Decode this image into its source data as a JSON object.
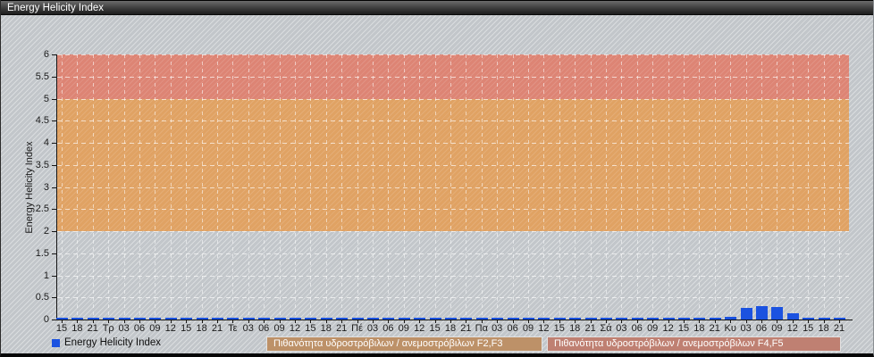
{
  "window": {
    "title": "Energy Helicity Index"
  },
  "colors": {
    "band_f23": "#e0a263",
    "band_f45": "#dd8474",
    "bar_blue": "#1b52e0",
    "legend_box_f23": "#bd9168",
    "legend_box_f45": "#bf8072",
    "background_gray": "#c2c6ca",
    "axis": "#151515"
  },
  "chart_data": {
    "type": "bar",
    "title": "Energy Helicity Index",
    "ylabel": "Energy Helicity Index",
    "xlabel": "",
    "ylim": [
      0,
      6
    ],
    "ytick_step": 0.5,
    "grid": "dashed-white",
    "legend_position": "bottom",
    "categories": [
      "15",
      "18",
      "21",
      "Τρ",
      "03",
      "06",
      "09",
      "12",
      "15",
      "18",
      "21",
      "Τε",
      "03",
      "06",
      "09",
      "12",
      "15",
      "18",
      "21",
      "Πέ",
      "03",
      "06",
      "09",
      "12",
      "15",
      "18",
      "21",
      "Πα",
      "03",
      "06",
      "09",
      "12",
      "15",
      "18",
      "21",
      "Σά",
      "03",
      "06",
      "09",
      "12",
      "15",
      "18",
      "21",
      "Κυ",
      "03",
      "06",
      "09",
      "12",
      "15",
      "18",
      "21"
    ],
    "series": [
      {
        "name": "Energy Helicity Index",
        "values": [
          0,
          0,
          0,
          0,
          0,
          0,
          0,
          0,
          0,
          0,
          0,
          0,
          0,
          0,
          0,
          0,
          0,
          0,
          0,
          0,
          0,
          0,
          0,
          0,
          0,
          0,
          0,
          0,
          0,
          0,
          0,
          0,
          0,
          0,
          0,
          0,
          0,
          0,
          0,
          0,
          0,
          0,
          0.04,
          0.07,
          0.27,
          0.3,
          0.28,
          0.15,
          0.04,
          0.02,
          0.04
        ]
      }
    ],
    "bands": [
      {
        "from": 2,
        "to": 5,
        "label": "Πιθανότητα υδροστρόβιλων / ανεμοστρόβιλων F2,F3"
      },
      {
        "from": 5,
        "to": 6,
        "label": "Πιθανότητα υδροστρόβιλων / ανεμοστρόβιλων F4,F5"
      }
    ]
  },
  "legend": {
    "series_label": "Energy Helicity Index",
    "band_f23_label": "Πιθανότητα υδροστρόβιλων / ανεμοστρόβιλων F2,F3",
    "band_f45_label": "Πιθανότητα υδροστρόβιλων / ανεμοστρόβιλων F4,F5"
  }
}
